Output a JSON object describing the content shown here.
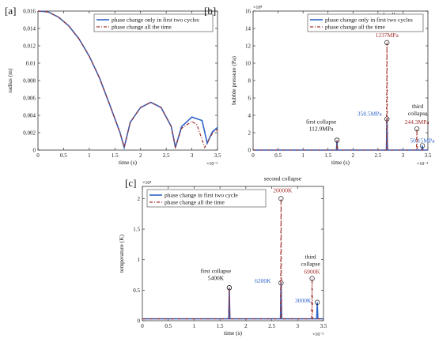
{
  "panels": [
    {
      "label": "[a]"
    },
    {
      "label": "[b]"
    },
    {
      "label": "[c]"
    }
  ],
  "colors": {
    "series1": "#2E64C8",
    "series2": "#A0302A",
    "marker": "#222222"
  },
  "chart_data": [
    {
      "type": "line",
      "xlabel": "time (s)",
      "ylabel": "radius (m)",
      "x_exponent": "×10⁻³",
      "xlim": [
        0,
        3.5
      ],
      "ylim": [
        0,
        0.016
      ],
      "xticks": [
        "0",
        "0.5",
        "1",
        "1.5",
        "2",
        "2.5",
        "3",
        "3.5"
      ],
      "yticks": [
        "0",
        "0.002",
        "0.004",
        "0.006",
        "0.008",
        "0.01",
        "0.012",
        "0.014",
        "0.016"
      ],
      "legend": [
        "phase change only in first two cycles",
        "phase change all the time"
      ],
      "legend_position": "top-right",
      "series": [
        {
          "name": "phase change only in first two cycles",
          "x": [
            0,
            0.2,
            0.4,
            0.6,
            0.8,
            1.0,
            1.2,
            1.4,
            1.6,
            1.68,
            1.8,
            2.0,
            2.2,
            2.4,
            2.6,
            2.68,
            2.8,
            3.0,
            3.2,
            3.3,
            3.4,
            3.5
          ],
          "y": [
            0.016,
            0.0159,
            0.0153,
            0.0143,
            0.0128,
            0.0108,
            0.0083,
            0.0052,
            0.002,
            0.0003,
            0.0032,
            0.0049,
            0.0055,
            0.0049,
            0.0027,
            0.0003,
            0.0027,
            0.0038,
            0.0034,
            0.0008,
            0.0021,
            0.0026
          ]
        },
        {
          "name": "phase change all the time",
          "x": [
            0,
            0.2,
            0.4,
            0.6,
            0.8,
            1.0,
            1.2,
            1.4,
            1.6,
            1.68,
            1.8,
            2.0,
            2.2,
            2.4,
            2.6,
            2.68,
            2.8,
            3.0,
            3.1,
            3.25,
            3.4,
            3.5
          ],
          "y": [
            0.016,
            0.0159,
            0.0153,
            0.0143,
            0.0128,
            0.0108,
            0.0083,
            0.0052,
            0.002,
            0.0003,
            0.0032,
            0.0049,
            0.0055,
            0.0049,
            0.0027,
            0.0003,
            0.0025,
            0.0033,
            0.0029,
            0.0003,
            0.0019,
            0.0024
          ]
        }
      ]
    },
    {
      "type": "line",
      "xlabel": "time (s)",
      "ylabel": "bubble pressure (Pa)",
      "x_exponent": "×10⁻³",
      "y_exponent": "×10⁸",
      "xlim": [
        0,
        3.5
      ],
      "ylim": [
        0,
        16
      ],
      "xticks": [
        "0",
        "0.5",
        "1",
        "1.5",
        "2",
        "2.5",
        "3",
        "3.5"
      ],
      "yticks": [
        "0",
        "2",
        "4",
        "6",
        "8",
        "10",
        "12",
        "14",
        "16"
      ],
      "legend": [
        "phase change only in first two cycles",
        "phase change all the time"
      ],
      "legend_position": "top-right",
      "series": [
        {
          "name": "phase change only in first two cycles",
          "spikes": [
            {
              "x": 1.68,
              "y": 1.129
            },
            {
              "x": 2.68,
              "y": 3.585
            },
            {
              "x": 3.39,
              "y": 0.5015
            }
          ]
        },
        {
          "name": "phase change all the time",
          "spikes": [
            {
              "x": 1.68,
              "y": 1.129
            },
            {
              "x": 2.68,
              "y": 12.37
            },
            {
              "x": 3.28,
              "y": 2.443
            }
          ]
        }
      ],
      "annotations": [
        {
          "lines": [
            "first collapse",
            "112.9MPa"
          ],
          "series": 0,
          "spike": 0
        },
        {
          "lines": [
            "second collapse"
          ],
          "series": 1,
          "spike": 1
        },
        {
          "lines": [
            "1237MPa"
          ],
          "series": 1,
          "spike": 1,
          "color": "series2"
        },
        {
          "lines": [
            "358.5MPa"
          ],
          "series": 0,
          "spike": 1,
          "color": "series1"
        },
        {
          "lines": [
            "third",
            "collapse"
          ],
          "series": 1,
          "spike": 2
        },
        {
          "lines": [
            "244.3MPa"
          ],
          "series": 1,
          "spike": 2,
          "color": "series2"
        },
        {
          "lines": [
            "50.15MPa"
          ],
          "series": 0,
          "spike": 2,
          "color": "series1"
        }
      ]
    },
    {
      "type": "line",
      "xlabel": "time (s)",
      "ylabel": "temperature (K)",
      "x_exponent": "×10⁻³",
      "y_exponent": "×10⁴",
      "xlim": [
        0,
        3.5
      ],
      "ylim": [
        0,
        2.2
      ],
      "xticks": [
        "0",
        "0.5",
        "1",
        "1.5",
        "2",
        "2.5",
        "3",
        "3.5"
      ],
      "yticks": [
        "0",
        "0.5",
        "1",
        "1.5",
        "2"
      ],
      "legend": [
        "phase change in first two cycle",
        "phase change all the time"
      ],
      "legend_position": "top-left",
      "baseline": 0.03,
      "series": [
        {
          "name": "phase change in first two cycle",
          "spikes": [
            {
              "x": 1.68,
              "y": 0.54
            },
            {
              "x": 2.68,
              "y": 0.62
            },
            {
              "x": 3.38,
              "y": 0.3
            }
          ]
        },
        {
          "name": "phase change all the time",
          "spikes": [
            {
              "x": 1.68,
              "y": 0.54
            },
            {
              "x": 2.68,
              "y": 2.0
            },
            {
              "x": 3.28,
              "y": 0.69
            }
          ]
        }
      ],
      "annotations": [
        {
          "lines": [
            "first collapse",
            "5400K"
          ],
          "series": 0,
          "spike": 0
        },
        {
          "lines": [
            "second collapse"
          ],
          "series": 1,
          "spike": 1
        },
        {
          "lines": [
            "20000K"
          ],
          "series": 1,
          "spike": 1,
          "color": "series2"
        },
        {
          "lines": [
            "6200K"
          ],
          "series": 0,
          "spike": 1,
          "color": "series1"
        },
        {
          "lines": [
            "third",
            "collapse"
          ],
          "series": 1,
          "spike": 2
        },
        {
          "lines": [
            "6900K"
          ],
          "series": 1,
          "spike": 2,
          "color": "series2"
        },
        {
          "lines": [
            "3000K"
          ],
          "series": 0,
          "spike": 2,
          "color": "series1"
        }
      ]
    }
  ]
}
